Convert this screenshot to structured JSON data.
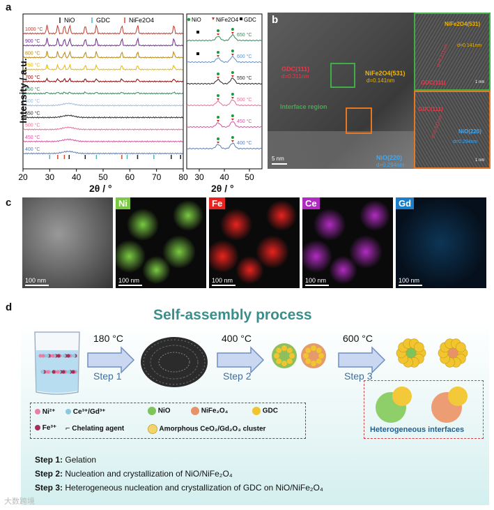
{
  "panel_a": {
    "letter": "a",
    "legend": [
      "NiO",
      "GDC",
      "NiFe2O4"
    ],
    "ylabel": "Intensity / a.u.",
    "xlabel": "2θ / °",
    "xticks": [
      "20",
      "30",
      "40",
      "50",
      "60",
      "70",
      "80"
    ],
    "temps": [
      "1000 °C",
      "900 °C",
      "800 °C",
      "750 °C",
      "700 °C",
      "650 °C",
      "600 °C",
      "550 °C",
      "500 °C",
      "450 °C",
      "400 °C"
    ],
    "colors": [
      "#c0392b",
      "#6c2a8c",
      "#b8860b",
      "#e6b800",
      "#8b0000",
      "#2e8b57",
      "#a0b8d8",
      "#222222",
      "#e07090",
      "#d64fa0",
      "#5a7bb5"
    ]
  },
  "panel_a_zoom": {
    "legend": [
      "NiO",
      "NiFe2O4",
      "GDC"
    ],
    "temps": [
      "650 °C",
      "600 °C",
      "550 °C",
      "500 °C",
      "450 °C",
      "400 °C"
    ],
    "xticks": [
      "30",
      "40",
      "50"
    ],
    "xlabel": "2θ / °"
  },
  "panel_b": {
    "letter": "b",
    "labels": {
      "gdc": "GDC(111)",
      "gdc_d": "d=0.311nm",
      "nife": "NiFe2O4(531)",
      "nife_d": "d=0.141nm",
      "interface": "Interface region",
      "nio": "NiO(220)",
      "nio_d": "d=0.294nm",
      "scale": "5 nm",
      "inset1_top": "NiFe2O4(531)",
      "inset1_d1": "d=0.141nm",
      "inset1_d2": "d=0.311nm",
      "inset1_bottom": "GDC(111)",
      "inset1_scale": "1 nm",
      "inset2_top": "GDC(111)",
      "inset2_d1": "d=0.311nm",
      "inset2_nio": "NiO(220)",
      "inset2_d2": "d=0.294nm",
      "inset2_scale": "1 nm"
    }
  },
  "panel_c": {
    "letter": "c",
    "maps": [
      {
        "label": "",
        "scale": "100 nm",
        "color": "#888888"
      },
      {
        "label": "Ni",
        "scale": "100 nm",
        "color": "#7ac943"
      },
      {
        "label": "Fe",
        "scale": "100 nm",
        "color": "#e8231f"
      },
      {
        "label": "Ce",
        "scale": "100 nm",
        "color": "#b02cc0"
      },
      {
        "label": "Gd",
        "scale": "100 nm",
        "color": "#1a7fc8"
      }
    ]
  },
  "panel_d": {
    "letter": "d",
    "title": "Self-assembly process",
    "arrow1_temp": "180 °C",
    "arrow1_step": "Step 1",
    "arrow2_temp": "400 °C",
    "arrow2_step": "Step 2",
    "arrow3_temp": "600 °C",
    "arrow3_step": "Step 3",
    "legend": {
      "ni": "Ni²⁺",
      "ce": "Ce³⁺/Gd³⁺",
      "fe": "Fe³⁺",
      "chel": "Chelating agent",
      "nio": "NiO",
      "nife": "NiFe₂O₄",
      "gdc": "GDC",
      "amorph": "Amorphous CeO₂/Gd₂O₃ cluster"
    },
    "hetero": "Heterogeneous interfaces",
    "steps": [
      {
        "bold": "Step 1:",
        "text": "Gelation"
      },
      {
        "bold": "Step 2:",
        "text": "Nucleation and crystallization of NiO/NiFe₂O₄"
      },
      {
        "bold": "Step 3:",
        "text": "Heterogeneous nucleation and crystallization of GDC on NiO/NiFe₂O₄"
      }
    ],
    "watermark": "大数跨境"
  }
}
